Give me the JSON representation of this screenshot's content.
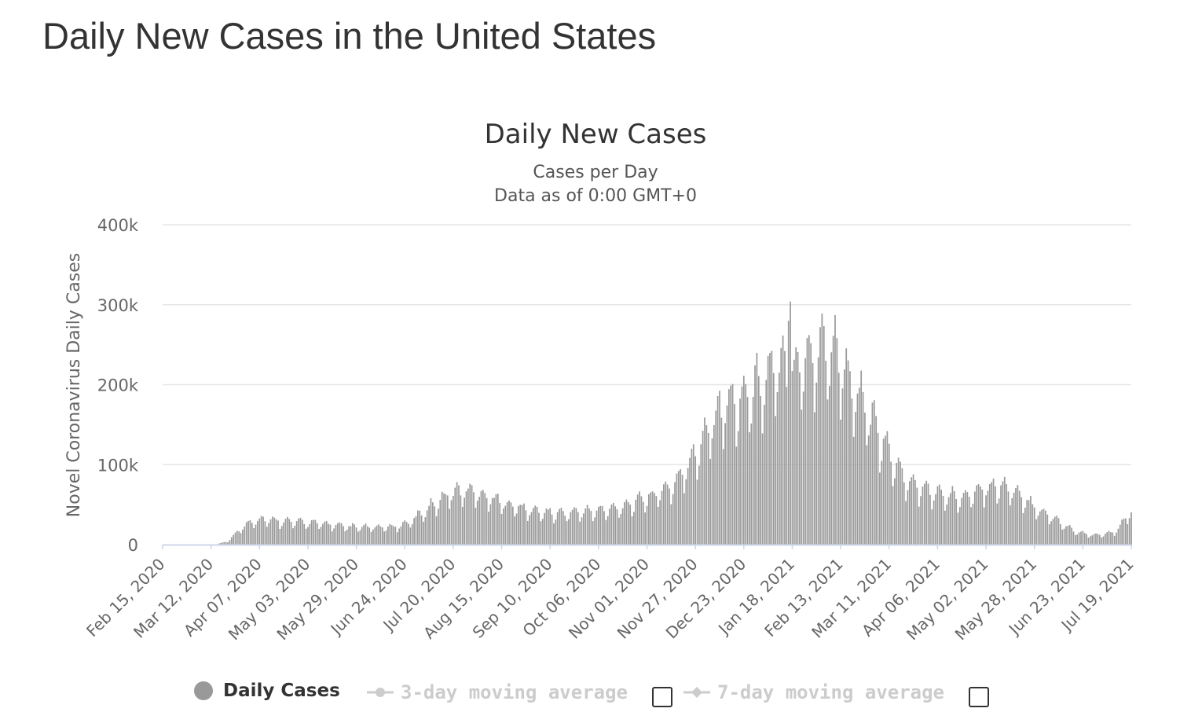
{
  "page": {
    "title": "Daily New Cases in the United States"
  },
  "colors": {
    "bar": "#999999",
    "grid": "#e6e6e6",
    "baseline": "#ccd6eb",
    "text": "#333333",
    "axis_text": "#666666",
    "legend_inactive": "#cccccc"
  },
  "legend": {
    "items": [
      {
        "label": "Daily Cases",
        "state": "active"
      },
      {
        "label": "3-day moving average",
        "state": "inactive"
      },
      {
        "label": "7-day moving average",
        "state": "inactive"
      }
    ]
  },
  "chart_data": {
    "type": "bar",
    "title": "Daily New Cases",
    "subtitle_lines": [
      "Cases per Day",
      "Data as of 0:00 GMT+0"
    ],
    "ylabel": "Novel Coronavirus Daily Cases",
    "xlabel": "",
    "ylim": [
      0,
      400000
    ],
    "ytick_labels": [
      "0",
      "100k",
      "200k",
      "300k",
      "400k"
    ],
    "grid": true,
    "legend_position": "bottom",
    "x_tick_labels": [
      "Feb 15, 2020",
      "Mar 12, 2020",
      "Apr 07, 2020",
      "May 03, 2020",
      "May 29, 2020",
      "Jun 24, 2020",
      "Jul 20, 2020",
      "Aug 15, 2020",
      "Sep 10, 2020",
      "Oct 06, 2020",
      "Nov 01, 2020",
      "Nov 27, 2020",
      "Dec 23, 2020",
      "Jan 18, 2021",
      "Feb 13, 2021",
      "Mar 11, 2021",
      "Apr 06, 2021",
      "May 02, 2021",
      "May 28, 2021",
      "Jun 23, 2021",
      "Jul 19, 2021"
    ],
    "x_tick_interval_days": 26,
    "start_date": "Feb 15, 2020",
    "end_date": "Jul 19, 2021",
    "num_days": 521,
    "series": [
      {
        "name": "Daily Cases",
        "weekly_avg_anchor_day_index": [
          0,
          28,
          35,
          42,
          49,
          56,
          63,
          70,
          84,
          98,
          112,
          126,
          133,
          140,
          147,
          154,
          161,
          168,
          175,
          182,
          196,
          210,
          224,
          238,
          252,
          259,
          266,
          273,
          280,
          287,
          294,
          301,
          308,
          315,
          322,
          329,
          336,
          343,
          350,
          357,
          364,
          371,
          378,
          385,
          392,
          399,
          406,
          413,
          420,
          427,
          434,
          441,
          448,
          455,
          462,
          469,
          476,
          483,
          490,
          497,
          504,
          511,
          520
        ],
        "weekly_avg_values": [
          0,
          0,
          4000,
          20000,
          30000,
          31000,
          29000,
          28000,
          26000,
          22000,
          21000,
          22000,
          28000,
          40000,
          52000,
          62000,
          66000,
          64000,
          58000,
          52000,
          42000,
          38000,
          40000,
          42000,
          50000,
          57000,
          62000,
          72000,
          88000,
          115000,
          150000,
          170000,
          175000,
          185000,
          200000,
          215000,
          210000,
          225000,
          235000,
          245000,
          225000,
          190000,
          165000,
          130000,
          105000,
          78000,
          70000,
          64000,
          60000,
          58000,
          63000,
          68000,
          72000,
          68000,
          55000,
          45000,
          35000,
          26000,
          16000,
          12000,
          12000,
          15000,
          40000
        ],
        "spike_days": [
          {
            "day_index": 337,
            "value": 304000
          },
          {
            "day_index": 336,
            "value": 280000
          }
        ]
      }
    ]
  }
}
